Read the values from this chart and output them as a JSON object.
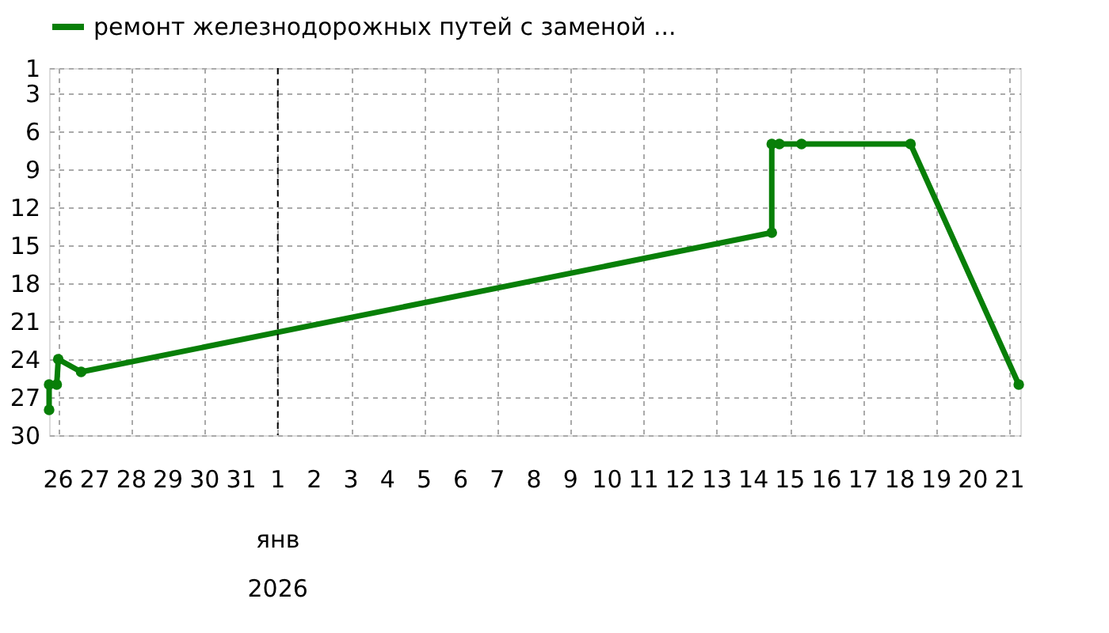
{
  "chart_data": {
    "type": "line",
    "x": [
      "2025-12-25T18:00",
      "2025-12-25T18:00",
      "2025-12-25T23:00",
      "2025-12-26T00:00",
      "2025-12-26T15:00",
      "2026-01-14T12:00",
      "2026-01-14T12:00",
      "2026-01-14T17:00",
      "2026-01-15T07:30",
      "2026-01-18T07:00",
      "2026-01-21T06:00"
    ],
    "series": [
      {
        "name": "ремонт железнодорожных путей с заменой ...",
        "color": "#087f08",
        "values": [
          28,
          26,
          26,
          24,
          25,
          14,
          7,
          7,
          7,
          7,
          26
        ]
      }
    ],
    "xlim": [
      "2025-12-25T18:00",
      "2026-01-21T07:00"
    ],
    "xticks": [
      {
        "value": "2025-12-26",
        "label": "26"
      },
      {
        "value": "2025-12-27",
        "label": "27"
      },
      {
        "value": "2025-12-28",
        "label": "28"
      },
      {
        "value": "2025-12-29",
        "label": "29"
      },
      {
        "value": "2025-12-30",
        "label": "30"
      },
      {
        "value": "2025-12-31",
        "label": "31"
      },
      {
        "value": "2026-01-01",
        "label": "1"
      },
      {
        "value": "2026-01-02",
        "label": "2"
      },
      {
        "value": "2026-01-03",
        "label": "3"
      },
      {
        "value": "2026-01-04",
        "label": "4"
      },
      {
        "value": "2026-01-05",
        "label": "5"
      },
      {
        "value": "2026-01-06",
        "label": "6"
      },
      {
        "value": "2026-01-07",
        "label": "7"
      },
      {
        "value": "2026-01-08",
        "label": "8"
      },
      {
        "value": "2026-01-09",
        "label": "9"
      },
      {
        "value": "2026-01-10",
        "label": "10"
      },
      {
        "value": "2026-01-11",
        "label": "11"
      },
      {
        "value": "2026-01-12",
        "label": "12"
      },
      {
        "value": "2026-01-13",
        "label": "13"
      },
      {
        "value": "2026-01-14",
        "label": "14"
      },
      {
        "value": "2026-01-15",
        "label": "15"
      },
      {
        "value": "2026-01-16",
        "label": "16"
      },
      {
        "value": "2026-01-17",
        "label": "17"
      },
      {
        "value": "2026-01-18",
        "label": "18"
      },
      {
        "value": "2026-01-19",
        "label": "19"
      },
      {
        "value": "2026-01-20",
        "label": "20"
      },
      {
        "value": "2026-01-21",
        "label": "21"
      }
    ],
    "ylim": [
      30,
      1
    ],
    "yticks": [
      1,
      3,
      6,
      9,
      12,
      15,
      18,
      21,
      24,
      27,
      30
    ],
    "xlabel": "янв",
    "annotations": [
      "2026"
    ],
    "ref_lines": [
      {
        "axis": "x",
        "value": "2026-01-01",
        "color": "#000000",
        "line_style": "dashed"
      }
    ],
    "grid": true,
    "legend": "top",
    "marker": "circle",
    "line_style": "solid"
  }
}
